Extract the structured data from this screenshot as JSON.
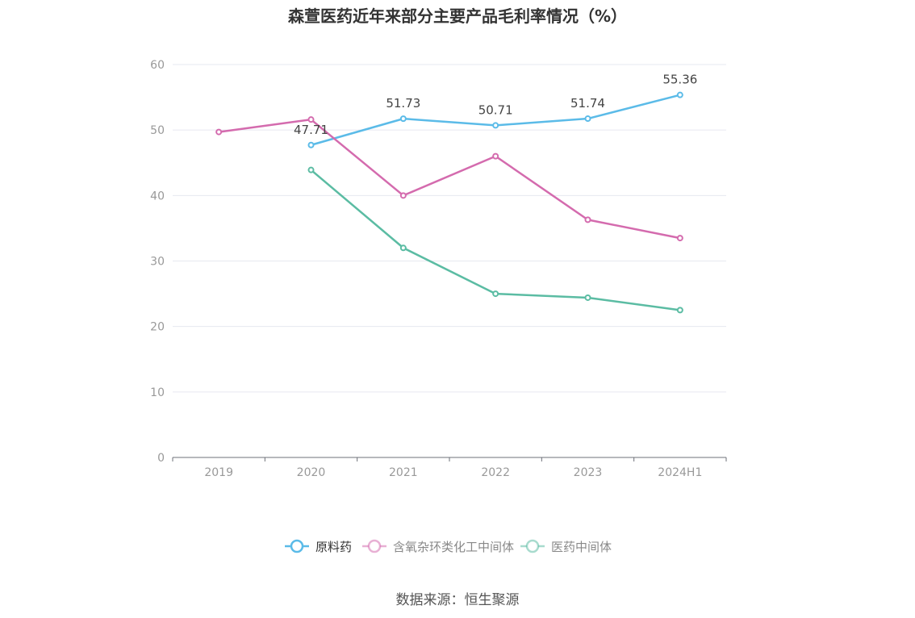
{
  "chart_data": {
    "type": "line",
    "title": "森萱医药近年来部分主要产品毛利率情况（%）",
    "categories": [
      "2019",
      "2020",
      "2021",
      "2022",
      "2023",
      "2024H1"
    ],
    "ylim": [
      0,
      60
    ],
    "yticks": [
      0,
      10,
      20,
      30,
      40,
      50,
      60
    ],
    "grid": true,
    "legend_position": "bottom",
    "series": [
      {
        "name": "原料药",
        "color": "#5bbbe8",
        "show_labels": true,
        "values": [
          null,
          47.71,
          51.73,
          50.71,
          51.74,
          55.36
        ]
      },
      {
        "name": "含氧杂环类化工中间体",
        "color": "#d46bae",
        "show_labels": false,
        "values": [
          49.7,
          51.6,
          40.0,
          46.0,
          36.3,
          33.5
        ]
      },
      {
        "name": "医药中间体",
        "color": "#5bbca3",
        "show_labels": false,
        "values": [
          null,
          43.9,
          32.0,
          25.0,
          24.4,
          22.5
        ]
      }
    ],
    "source": "数据来源：恒生聚源"
  }
}
